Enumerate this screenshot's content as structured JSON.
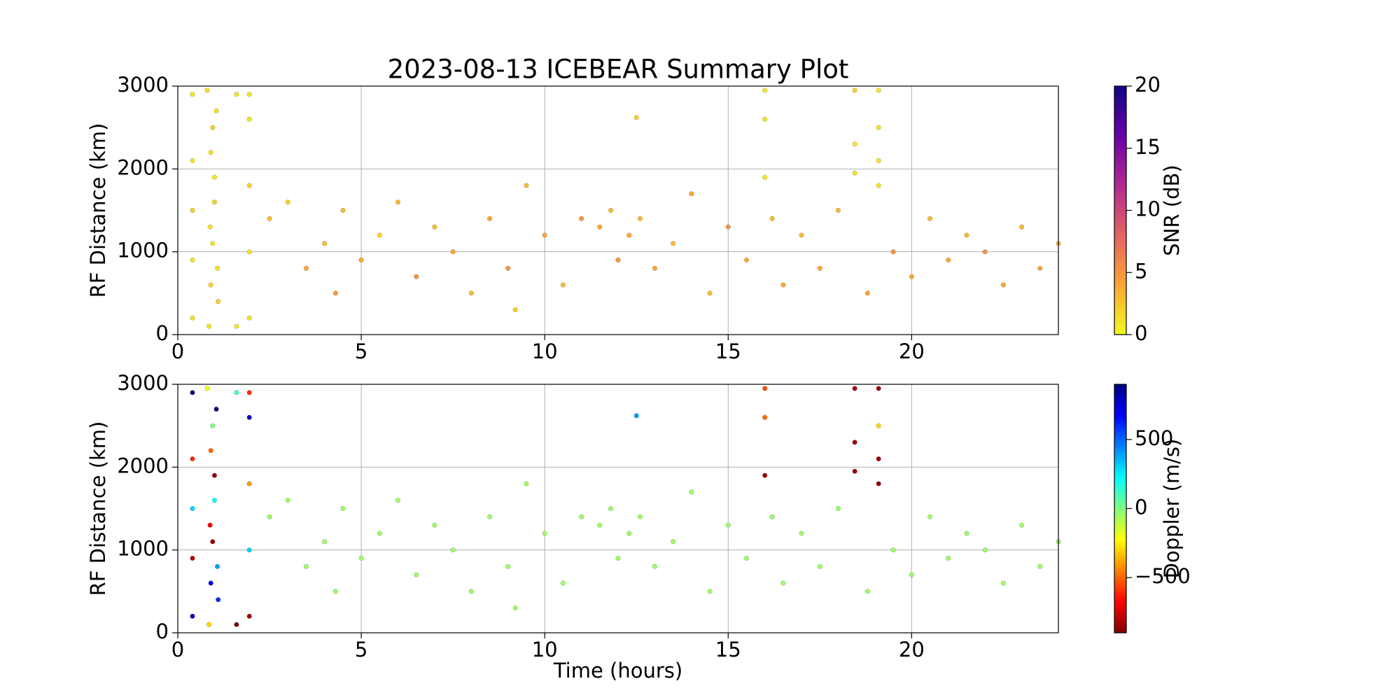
{
  "chart_data": [
    {
      "type": "scatter",
      "title": "2023-08-13 ICEBEAR Summary Plot",
      "ylabel": "RF Distance (km)",
      "xlim": [
        0,
        24
      ],
      "ylim": [
        0,
        3000
      ],
      "xticks": [
        0,
        5,
        10,
        15,
        20
      ],
      "yticks": [
        0,
        1000,
        2000,
        3000
      ],
      "grid": true,
      "x": [
        0.4,
        0.4,
        0.4,
        0.4,
        0.4,
        0.85,
        0.9,
        0.95,
        1.0,
        0.9,
        1.05,
        0.8,
        1.1,
        1.0,
        0.95,
        0.88,
        1.08,
        1.95,
        1.95,
        1.95,
        1.95,
        1.95,
        1.6,
        1.6,
        16,
        16,
        16,
        18.45,
        18.45,
        18.45,
        19.1,
        19.1,
        19.1,
        19.1,
        2.5,
        3,
        3.5,
        4,
        4.3,
        4.5,
        5,
        5.5,
        6,
        6.5,
        7,
        7.5,
        8,
        8.5,
        9,
        9.2,
        9.5,
        10,
        10.5,
        11,
        11.5,
        11.8,
        12,
        12.3,
        12.5,
        12.6,
        13,
        13.5,
        14,
        14.5,
        15,
        15.5,
        16.2,
        16.5,
        17,
        17.5,
        18,
        18.8,
        19.5,
        20,
        20.5,
        21,
        21.5,
        22,
        22.5,
        23,
        23.5,
        24
      ],
      "values": [
        200,
        900,
        1500,
        2100,
        2900,
        100,
        600,
        1100,
        1600,
        2200,
        2700,
        2950,
        400,
        1900,
        2500,
        1300,
        800,
        200,
        1000,
        1800,
        2600,
        2900,
        2900,
        100,
        2950,
        2600,
        1900,
        2950,
        2300,
        1950,
        2950,
        2500,
        2100,
        1800,
        1400,
        1600,
        800,
        1100,
        500,
        1500,
        900,
        1200,
        1600,
        700,
        1300,
        1000,
        500,
        1400,
        800,
        300,
        1800,
        1200,
        600,
        1400,
        1300,
        1500,
        900,
        1200,
        2620,
        1400,
        800,
        1100,
        1700,
        500,
        1300,
        900,
        1400,
        600,
        1200,
        800,
        1500,
        500,
        1000,
        700,
        1400,
        900,
        1200,
        1000,
        600,
        1300,
        800,
        1100
      ],
      "color_values": [
        1,
        1,
        2,
        1,
        1,
        1,
        2,
        1,
        2,
        1,
        1,
        1,
        2,
        1,
        2,
        1,
        1,
        1,
        1,
        2,
        1,
        1,
        1,
        1,
        1,
        1,
        1,
        2,
        1,
        1,
        1,
        1,
        1,
        1,
        3,
        2,
        4,
        3,
        5,
        3,
        4,
        2,
        3,
        5,
        3,
        4,
        3,
        4,
        5,
        2,
        3,
        4,
        3,
        5,
        4,
        3,
        5,
        4,
        2,
        3,
        4,
        3,
        4,
        3,
        5,
        4,
        3,
        4,
        3,
        4,
        3,
        4,
        5,
        4,
        3,
        4,
        3,
        5,
        4,
        3,
        4,
        3
      ],
      "colorbar": {
        "label": "SNR (dB)",
        "lim": [
          0,
          20
        ],
        "ticks": [
          0,
          5,
          10,
          15,
          20
        ],
        "colors": [
          "#f0f921",
          "#fca636",
          "#e16462",
          "#b12a90",
          "#6a00a8",
          "#0d0887"
        ]
      }
    },
    {
      "type": "scatter",
      "ylabel": "RF Distance (km)",
      "xlabel": "Time (hours)",
      "xlim": [
        0,
        24
      ],
      "ylim": [
        0,
        3000
      ],
      "xticks": [
        0,
        5,
        10,
        15,
        20
      ],
      "yticks": [
        0,
        1000,
        2000,
        3000
      ],
      "grid": true,
      "x": [
        0.4,
        0.4,
        0.4,
        0.4,
        0.4,
        0.85,
        0.9,
        0.95,
        1.0,
        0.9,
        1.05,
        0.8,
        1.1,
        1.0,
        0.95,
        0.88,
        1.08,
        1.95,
        1.95,
        1.95,
        1.95,
        1.95,
        1.6,
        1.6,
        16,
        16,
        16,
        18.45,
        18.45,
        18.45,
        19.1,
        19.1,
        19.1,
        19.1,
        2.5,
        3,
        3.5,
        4,
        4.3,
        4.5,
        5,
        5.5,
        6,
        6.5,
        7,
        7.5,
        8,
        8.5,
        9,
        9.2,
        9.5,
        10,
        10.5,
        11,
        11.5,
        11.8,
        12,
        12.3,
        12.5,
        12.6,
        13,
        13.5,
        14,
        14.5,
        15,
        15.5,
        16.2,
        16.5,
        17,
        17.5,
        18,
        18.8,
        19.5,
        20,
        20.5,
        21,
        21.5,
        22,
        22.5,
        23,
        23.5,
        24
      ],
      "values": [
        200,
        900,
        1500,
        2100,
        2900,
        100,
        600,
        1100,
        1600,
        2200,
        2700,
        2950,
        400,
        1900,
        2500,
        1300,
        800,
        200,
        1000,
        1800,
        2600,
        2900,
        2900,
        100,
        2950,
        2600,
        1900,
        2950,
        2300,
        1950,
        2950,
        2500,
        2100,
        1800,
        1400,
        1600,
        800,
        1100,
        500,
        1500,
        900,
        1200,
        1600,
        700,
        1300,
        1000,
        500,
        1400,
        800,
        300,
        1800,
        1200,
        600,
        1400,
        1300,
        1500,
        900,
        1200,
        2620,
        1400,
        800,
        1100,
        1700,
        500,
        1300,
        900,
        1400,
        600,
        1200,
        800,
        1500,
        500,
        1000,
        700,
        1400,
        900,
        1200,
        1000,
        600,
        1300,
        800,
        1100
      ],
      "color_values": [
        800,
        -800,
        300,
        -600,
        900,
        -300,
        700,
        -850,
        200,
        -500,
        900,
        -200,
        600,
        -850,
        0,
        -700,
        400,
        -850,
        300,
        -400,
        800,
        -600,
        100,
        -900,
        -550,
        -500,
        -850,
        -850,
        -850,
        -850,
        -850,
        -300,
        -850,
        -850,
        -50,
        -50,
        -50,
        -50,
        -50,
        -50,
        -50,
        -50,
        -50,
        -50,
        -50,
        -50,
        -50,
        -50,
        -50,
        -50,
        -50,
        -50,
        -50,
        -50,
        -50,
        -50,
        -50,
        -50,
        400,
        -50,
        -50,
        -50,
        -50,
        -50,
        -50,
        -50,
        -50,
        -50,
        -50,
        -50,
        -50,
        -50,
        -50,
        -50,
        -50,
        -50,
        -50,
        -50,
        -50,
        -50,
        -50,
        -50
      ],
      "colorbar": {
        "label": "Doppler (m/s)",
        "lim": [
          -900,
          900
        ],
        "ticks": [
          {
            "value": -500,
            "label": "−500"
          },
          0,
          500
        ],
        "colors": [
          "#800000",
          "#ff0000",
          "#ff8000",
          "#ffff00",
          "#80ff80",
          "#00ffff",
          "#0080ff",
          "#0000ff",
          "#000080"
        ]
      }
    }
  ]
}
